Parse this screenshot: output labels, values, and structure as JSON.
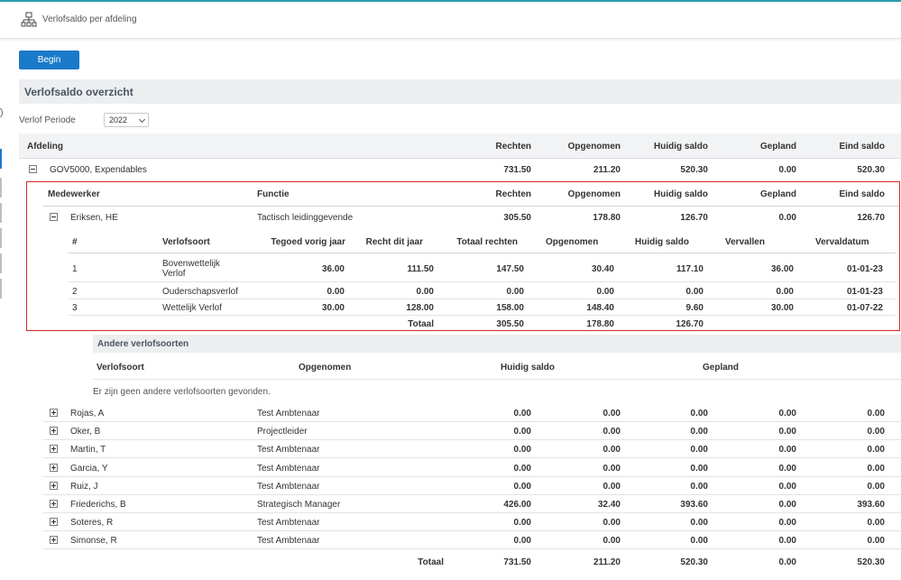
{
  "header": {
    "title": "Verlofsaldo per afdeling",
    "icon": "hierarchy-icon"
  },
  "toolbar": {
    "begin_label": "Begin"
  },
  "section": {
    "title": "Verlofsaldo overzicht"
  },
  "periode": {
    "label": "Verlof Periode",
    "value": "2022"
  },
  "main_table": {
    "headers": [
      "Afdeling",
      "Rechten",
      "Opgenomen",
      "Huidig saldo",
      "Gepland",
      "Eind saldo"
    ],
    "department": {
      "name": "GOV5000, Expendables",
      "rechten": "731.50",
      "opgenomen": "211.20",
      "huidig": "520.30",
      "gepland": "0.00",
      "eind": "520.30"
    }
  },
  "emp_table": {
    "headers": [
      "Medewerker",
      "Functie",
      "Rechten",
      "Opgenomen",
      "Huidig saldo",
      "Gepland",
      "Eind saldo"
    ],
    "expanded": {
      "name": "Eriksen, HE",
      "functie": "Tactisch leidinggevende",
      "rechten": "305.50",
      "opgenomen": "178.80",
      "huidig": "126.70",
      "gepland": "0.00",
      "eind": "126.70"
    }
  },
  "detail": {
    "headers": [
      "#",
      "Verlofsoort",
      "Tegoed vorig jaar",
      "Recht dit jaar",
      "Totaal rechten",
      "Opgenomen",
      "Huidig saldo",
      "Vervallen",
      "Vervaldatum"
    ],
    "rows": [
      {
        "nr": "1",
        "soort1": "Bovenwettelijk",
        "soort2": "Verlof",
        "tegoed": "36.00",
        "recht": "111.50",
        "totaal": "147.50",
        "opgenomen": "30.40",
        "huidig": "117.10",
        "vervallen": "36.00",
        "datum": "01-01-23"
      },
      {
        "nr": "2",
        "soort1": "Ouderschapsverlof",
        "soort2": "",
        "tegoed": "0.00",
        "recht": "0.00",
        "totaal": "0.00",
        "opgenomen": "0.00",
        "huidig": "0.00",
        "vervallen": "0.00",
        "datum": "01-01-23"
      },
      {
        "nr": "3",
        "soort1": "Wettelijk Verlof",
        "soort2": "",
        "tegoed": "30.00",
        "recht": "128.00",
        "totaal": "158.00",
        "opgenomen": "148.40",
        "huidig": "9.60",
        "vervallen": "30.00",
        "datum": "01-07-22"
      }
    ],
    "total": {
      "label": "Totaal",
      "totaal": "305.50",
      "opgenomen": "178.80",
      "huidig": "126.70"
    }
  },
  "andere": {
    "title": "Andere verlofsoorten",
    "headers": [
      "Verlofsoort",
      "Opgenomen",
      "Huidig saldo",
      "Gepland"
    ],
    "empty": "Er zijn geen andere verlofsoorten gevonden."
  },
  "employees": [
    {
      "name": "Rojas, A",
      "functie": "Test Ambtenaar",
      "rechten": "0.00",
      "opgenomen": "0.00",
      "huidig": "0.00",
      "gepland": "0.00",
      "eind": "0.00"
    },
    {
      "name": "Oker, B",
      "functie": "Projectleider",
      "rechten": "0.00",
      "opgenomen": "0.00",
      "huidig": "0.00",
      "gepland": "0.00",
      "eind": "0.00"
    },
    {
      "name": "Martin, T",
      "functie": "Test Ambtenaar",
      "rechten": "0.00",
      "opgenomen": "0.00",
      "huidig": "0.00",
      "gepland": "0.00",
      "eind": "0.00"
    },
    {
      "name": "Garcia, Y",
      "functie": "Test Ambtenaar",
      "rechten": "0.00",
      "opgenomen": "0.00",
      "huidig": "0.00",
      "gepland": "0.00",
      "eind": "0.00"
    },
    {
      "name": "Ruiz, J",
      "functie": "Test Ambtenaar",
      "rechten": "0.00",
      "opgenomen": "0.00",
      "huidig": "0.00",
      "gepland": "0.00",
      "eind": "0.00"
    },
    {
      "name": "Friederichs, B",
      "functie": "Strategisch Manager",
      "rechten": "426.00",
      "opgenomen": "32.40",
      "huidig": "393.60",
      "gepland": "0.00",
      "eind": "393.60"
    },
    {
      "name": "Soteres, R",
      "functie": "Test Ambtenaar",
      "rechten": "0.00",
      "opgenomen": "0.00",
      "huidig": "0.00",
      "gepland": "0.00",
      "eind": "0.00"
    },
    {
      "name": "Simonse, R",
      "functie": "Test Ambtenaar",
      "rechten": "0.00",
      "opgenomen": "0.00",
      "huidig": "0.00",
      "gepland": "0.00",
      "eind": "0.00"
    }
  ],
  "grand_total": {
    "label": "Totaal",
    "rechten": "731.50",
    "opgenomen": "211.20",
    "huidig": "520.30",
    "gepland": "0.00",
    "eind": "520.30"
  }
}
